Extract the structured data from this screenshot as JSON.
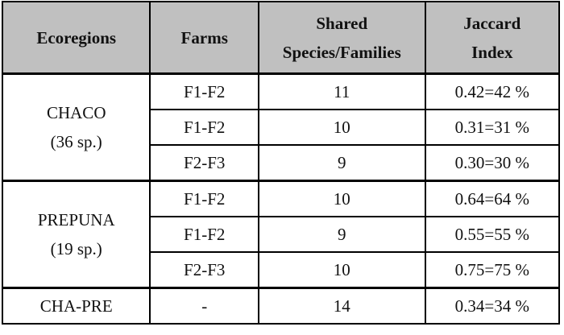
{
  "table": {
    "headers": [
      "Ecoregions",
      "Farms",
      "Shared Species/Families",
      "Jaccard Index"
    ],
    "header_lines": {
      "ecoregions": "Ecoregions",
      "farms": "Farms",
      "shared_1": "Shared",
      "shared_2": "Species/Families",
      "jaccard_1": "Jaccard",
      "jaccard_2": "Index"
    },
    "groups": [
      {
        "name": "CHACO",
        "species": "(36 sp.)",
        "rows": [
          {
            "farms": "F1-F2",
            "shared": "11",
            "jaccard": "0.42=42 %"
          },
          {
            "farms": "F1-F2",
            "shared": "10",
            "jaccard": "0.31=31 %"
          },
          {
            "farms": "F2-F3",
            "shared": "9",
            "jaccard": "0.30=30 %"
          }
        ]
      },
      {
        "name": "PREPUNA",
        "species": "(19 sp.)",
        "rows": [
          {
            "farms": "F1-F2",
            "shared": "10",
            "jaccard": "0.64=64 %"
          },
          {
            "farms": "F1-F2",
            "shared": "9",
            "jaccard": "0.55=55 %"
          },
          {
            "farms": "F2-F3",
            "shared": "10",
            "jaccard": "0.75=75 %"
          }
        ]
      },
      {
        "name": "CHA-PRE",
        "rows": [
          {
            "farms": "-",
            "shared": "14",
            "jaccard": "0.34=34 %"
          }
        ]
      }
    ]
  },
  "colors": {
    "header_bg": "#c0c0c0",
    "border": "#000000",
    "cell_bg": "#ffffff"
  }
}
